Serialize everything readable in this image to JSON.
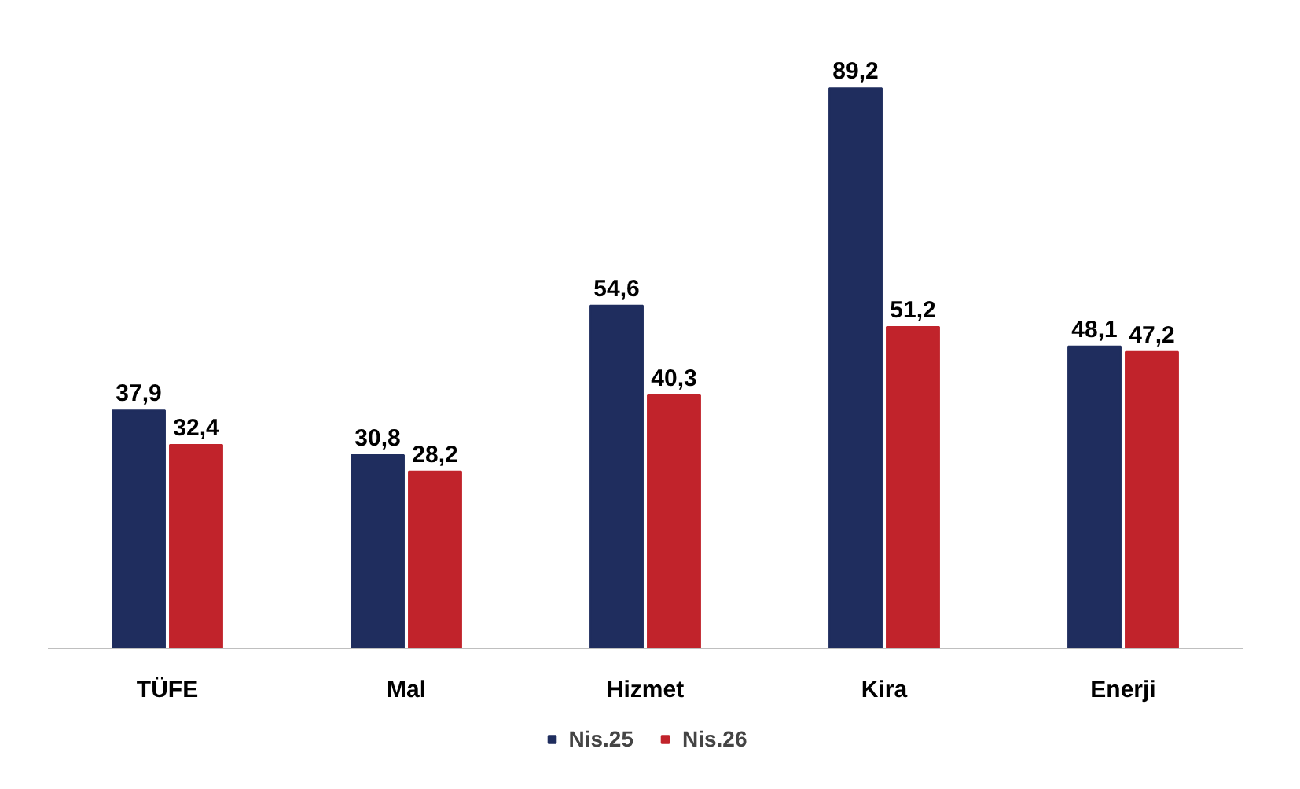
{
  "chart_data": {
    "type": "bar",
    "categories": [
      "TÜFE",
      "Mal",
      "Hizmet",
      "Kira",
      "Enerji"
    ],
    "series": [
      {
        "name": "Nis.25",
        "color": "#1f2d5e",
        "values": [
          37.9,
          30.8,
          54.6,
          89.2,
          48.1
        ],
        "value_labels": [
          "37,9",
          "30,8",
          "54,6",
          "89,2",
          "48,1"
        ]
      },
      {
        "name": "Nis.26",
        "color": "#c1232b",
        "values": [
          32.4,
          28.2,
          40.3,
          51.2,
          47.2
        ],
        "value_labels": [
          "32,4",
          "28,2",
          "40,3",
          "51,2",
          "47,2"
        ]
      }
    ],
    "legend": "bottom"
  }
}
